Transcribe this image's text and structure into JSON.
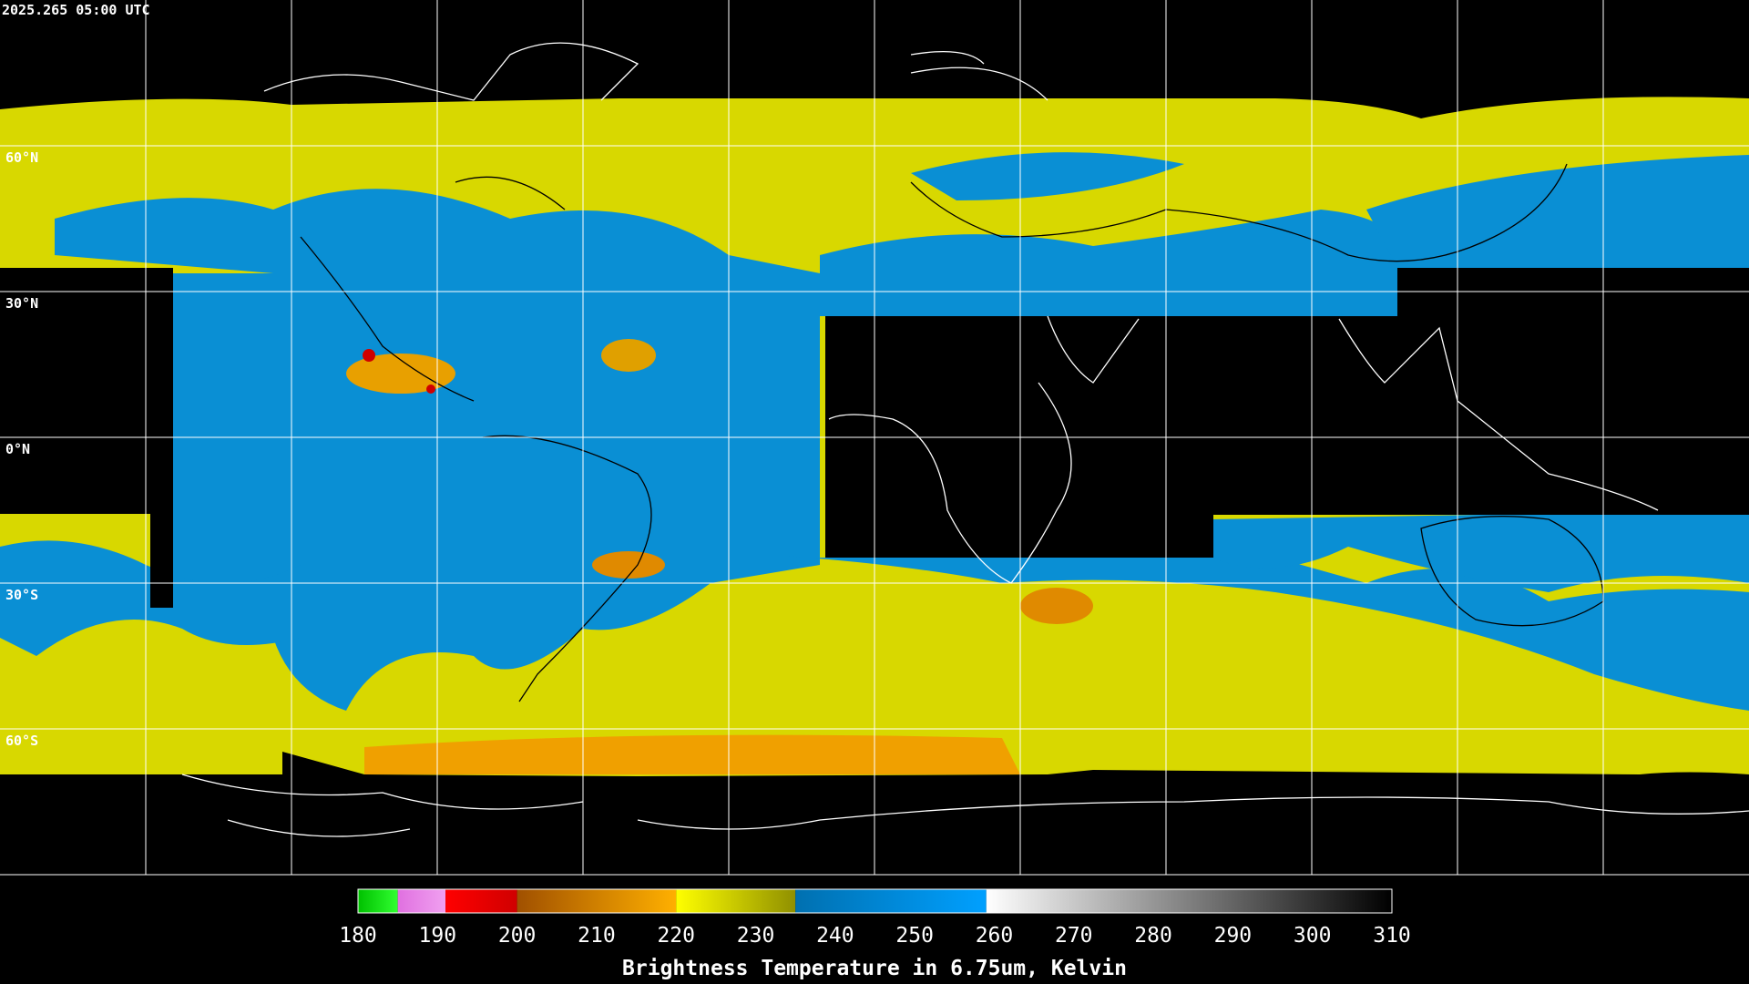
{
  "timestamp": "2025.265 05:00 UTC",
  "lat_labels": [
    "60°N",
    "30°N",
    "0°N",
    "30°S",
    "60°S"
  ],
  "colorbar": {
    "title": "Brightness Temperature in 6.75um, Kelvin",
    "range": [
      180,
      310
    ],
    "ticks": [
      180,
      190,
      200,
      210,
      220,
      230,
      240,
      250,
      260,
      270,
      280,
      290,
      300,
      310
    ],
    "segments": [
      {
        "from": 180,
        "to": 185,
        "colors": [
          "#00c000",
          "#30ff30"
        ]
      },
      {
        "from": 185,
        "to": 191,
        "colors": [
          "#e070e0",
          "#f0a0f0"
        ]
      },
      {
        "from": 191,
        "to": 200,
        "colors": [
          "#ff0000",
          "#d00000"
        ]
      },
      {
        "from": 200,
        "to": 220,
        "colors": [
          "#a05000",
          "#ffb000"
        ]
      },
      {
        "from": 220,
        "to": 235,
        "colors": [
          "#ffff00",
          "#909000"
        ]
      },
      {
        "from": 235,
        "to": 259,
        "colors": [
          "#0070b0",
          "#00a0ff"
        ]
      },
      {
        "from": 259,
        "to": 310,
        "colors": [
          "#ffffff",
          "#000000"
        ]
      }
    ]
  }
}
